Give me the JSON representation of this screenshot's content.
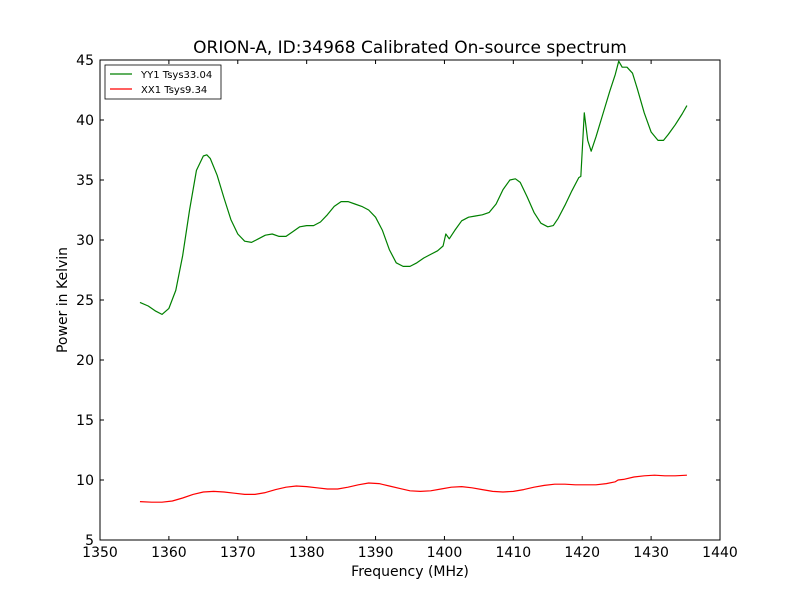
{
  "chart_data": {
    "type": "line",
    "title": "ORION-A, ID:34968 Calibrated On-source spectrum",
    "xlabel": "Frequency (MHz)",
    "ylabel": "Power in Kelvin",
    "xlim": [
      1350,
      1440
    ],
    "ylim": [
      5,
      45
    ],
    "xticks": [
      1350,
      1360,
      1370,
      1380,
      1390,
      1400,
      1410,
      1420,
      1430,
      1440
    ],
    "yticks": [
      5,
      10,
      15,
      20,
      25,
      30,
      35,
      40,
      45
    ],
    "grid": false,
    "legend_position": "top-left",
    "series": [
      {
        "name": "YY1 Tsys33.04",
        "color": "#008000",
        "x": [
          1355.8,
          1357.0,
          1358.0,
          1359.0,
          1360.0,
          1361.0,
          1362.0,
          1363.0,
          1364.0,
          1365.0,
          1365.5,
          1366.0,
          1367.0,
          1368.0,
          1369.0,
          1370.0,
          1371.0,
          1372.0,
          1373.0,
          1374.0,
          1375.0,
          1376.0,
          1377.0,
          1378.0,
          1379.0,
          1380.0,
          1381.0,
          1382.0,
          1383.0,
          1384.0,
          1385.0,
          1386.0,
          1387.0,
          1388.0,
          1389.0,
          1390.0,
          1391.0,
          1392.0,
          1393.0,
          1394.0,
          1395.0,
          1396.0,
          1397.0,
          1398.0,
          1399.0,
          1399.8,
          1400.2,
          1400.7,
          1401.5,
          1402.5,
          1403.5,
          1404.5,
          1405.5,
          1406.5,
          1407.5,
          1408.5,
          1409.5,
          1410.3,
          1411.0,
          1412.0,
          1413.0,
          1414.0,
          1415.0,
          1415.8,
          1416.5,
          1417.5,
          1418.5,
          1419.5,
          1419.8,
          1420.3,
          1420.8,
          1421.3,
          1422.0,
          1423.0,
          1424.0,
          1424.8,
          1425.3,
          1425.8,
          1426.5,
          1427.3,
          1428.0,
          1429.0,
          1430.0,
          1431.0,
          1431.8,
          1432.5,
          1433.5,
          1434.5,
          1435.2
        ],
        "y": [
          24.8,
          24.5,
          24.1,
          23.8,
          24.3,
          25.8,
          28.7,
          32.5,
          35.8,
          37.0,
          37.1,
          36.8,
          35.4,
          33.5,
          31.7,
          30.5,
          29.9,
          29.8,
          30.1,
          30.4,
          30.5,
          30.3,
          30.3,
          30.7,
          31.1,
          31.2,
          31.2,
          31.5,
          32.1,
          32.8,
          33.2,
          33.2,
          33.0,
          32.8,
          32.5,
          31.9,
          30.8,
          29.2,
          28.1,
          27.8,
          27.8,
          28.1,
          28.5,
          28.8,
          29.1,
          29.5,
          30.5,
          30.1,
          30.8,
          31.6,
          31.9,
          32.0,
          32.1,
          32.3,
          33.0,
          34.2,
          35.0,
          35.1,
          34.8,
          33.6,
          32.3,
          31.4,
          31.1,
          31.2,
          31.8,
          32.9,
          34.1,
          35.2,
          35.3,
          40.6,
          38.3,
          37.4,
          38.6,
          40.5,
          42.4,
          43.8,
          44.9,
          44.4,
          44.4,
          43.9,
          42.6,
          40.6,
          39.0,
          38.3,
          38.3,
          38.8,
          39.6,
          40.5,
          41.2
        ]
      },
      {
        "name": "XX1 Tsys9.34",
        "color": "#ff0000",
        "x": [
          1355.8,
          1357.5,
          1359.0,
          1360.5,
          1362.0,
          1363.5,
          1365.0,
          1366.5,
          1368.0,
          1369.5,
          1371.0,
          1372.5,
          1374.0,
          1375.5,
          1377.0,
          1378.5,
          1380.0,
          1381.5,
          1383.0,
          1384.5,
          1386.0,
          1387.5,
          1389.0,
          1390.5,
          1392.0,
          1393.5,
          1395.0,
          1396.5,
          1398.0,
          1399.5,
          1401.0,
          1402.5,
          1404.0,
          1405.5,
          1407.0,
          1408.5,
          1410.0,
          1411.5,
          1413.0,
          1414.5,
          1416.0,
          1417.5,
          1419.0,
          1420.5,
          1422.0,
          1423.5,
          1424.8,
          1425.2,
          1426.0,
          1427.5,
          1429.0,
          1430.5,
          1432.0,
          1433.5,
          1435.2
        ],
        "y": [
          8.2,
          8.15,
          8.15,
          8.25,
          8.5,
          8.8,
          9.0,
          9.05,
          9.0,
          8.9,
          8.8,
          8.8,
          8.95,
          9.2,
          9.4,
          9.5,
          9.45,
          9.35,
          9.25,
          9.25,
          9.4,
          9.6,
          9.75,
          9.7,
          9.5,
          9.3,
          9.1,
          9.05,
          9.1,
          9.25,
          9.4,
          9.45,
          9.35,
          9.2,
          9.05,
          9.0,
          9.05,
          9.2,
          9.4,
          9.55,
          9.65,
          9.65,
          9.6,
          9.6,
          9.6,
          9.7,
          9.85,
          10.0,
          10.05,
          10.25,
          10.35,
          10.4,
          10.35,
          10.35,
          10.4
        ]
      }
    ]
  }
}
